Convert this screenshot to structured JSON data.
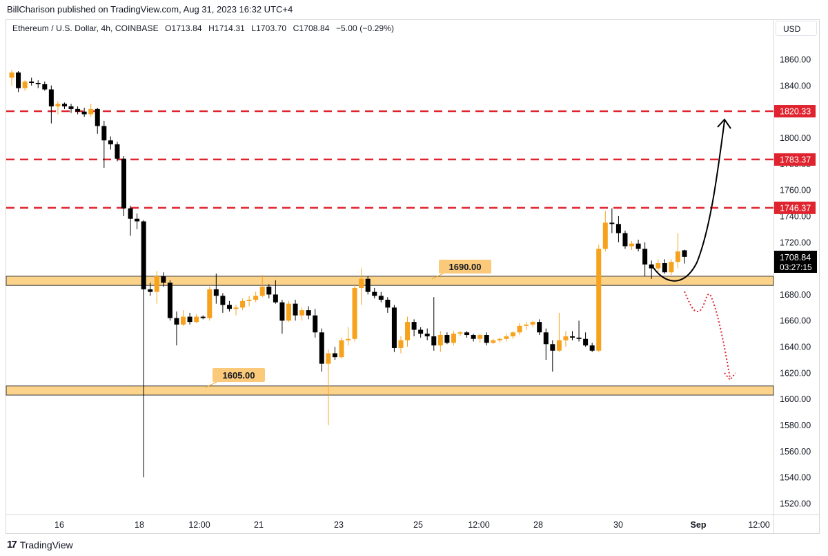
{
  "header": {
    "published": "BillCharison published on TradingView.com, Aug 31, 2023 16:32 UTC+4"
  },
  "legend": {
    "symbol": "Ethereum / U.S. Dollar, 4h, COINBASE",
    "open": "O1713.84",
    "high": "H1714.31",
    "low": "L1703.70",
    "close": "C1708.84",
    "change": "−5.00 (−0.29%)"
  },
  "currency_button": "USD",
  "footer": {
    "brand": "TradingView",
    "logo_icon": "tradingview-logo-icon"
  },
  "colors": {
    "up": "#f7a21c",
    "down": "#000000",
    "resistance": "#e0242f",
    "zone_fill": "#fbd38a",
    "bearish_path": "#e0242f"
  },
  "chart_data": {
    "type": "candlestick",
    "ylim": [
      1510,
      1875
    ],
    "y_ticks": [
      1520,
      1540,
      1560,
      1580,
      1600,
      1620,
      1640,
      1660,
      1680,
      1700,
      1720,
      1740,
      1760,
      1780,
      1800,
      1820,
      1840,
      1860
    ],
    "x_labels": [
      "16",
      "18",
      "12:00",
      "21",
      "23",
      "25",
      "12:00",
      "28",
      "30",
      "Sep",
      "12:00"
    ],
    "grid": false,
    "resistance_levels": [
      {
        "value": 1820.33,
        "label": "1820.33"
      },
      {
        "value": 1783.37,
        "label": "1783.37"
      },
      {
        "value": 1746.37,
        "label": "1746.37"
      }
    ],
    "support_zones": [
      {
        "top": 1694,
        "bottom": 1687,
        "label": "1690.00"
      },
      {
        "top": 1610,
        "bottom": 1603,
        "label": "1605.00"
      }
    ],
    "current_price": {
      "value": 1708.84,
      "label": "1708.84",
      "countdown": "03:27:15"
    },
    "candles": [
      {
        "o": 1846,
        "h": 1852,
        "l": 1840,
        "c": 1850
      },
      {
        "o": 1850,
        "h": 1851,
        "l": 1835,
        "c": 1838
      },
      {
        "o": 1838,
        "h": 1844,
        "l": 1836,
        "c": 1843
      },
      {
        "o": 1843,
        "h": 1846,
        "l": 1840,
        "c": 1842
      },
      {
        "o": 1842,
        "h": 1844,
        "l": 1838,
        "c": 1841
      },
      {
        "o": 1841,
        "h": 1843,
        "l": 1836,
        "c": 1837
      },
      {
        "o": 1837,
        "h": 1840,
        "l": 1811,
        "c": 1824
      },
      {
        "o": 1824,
        "h": 1828,
        "l": 1818,
        "c": 1826
      },
      {
        "o": 1826,
        "h": 1827,
        "l": 1822,
        "c": 1824
      },
      {
        "o": 1824,
        "h": 1826,
        "l": 1819,
        "c": 1822
      },
      {
        "o": 1822,
        "h": 1824,
        "l": 1818,
        "c": 1820
      },
      {
        "o": 1820,
        "h": 1823,
        "l": 1816,
        "c": 1818
      },
      {
        "o": 1818,
        "h": 1826,
        "l": 1816,
        "c": 1822
      },
      {
        "o": 1822,
        "h": 1823,
        "l": 1803,
        "c": 1809
      },
      {
        "o": 1809,
        "h": 1813,
        "l": 1777,
        "c": 1798
      },
      {
        "o": 1798,
        "h": 1801,
        "l": 1791,
        "c": 1795
      },
      {
        "o": 1795,
        "h": 1797,
        "l": 1782,
        "c": 1784
      },
      {
        "o": 1784,
        "h": 1786,
        "l": 1740,
        "c": 1746
      },
      {
        "o": 1746,
        "h": 1748,
        "l": 1725,
        "c": 1738
      },
      {
        "o": 1738,
        "h": 1742,
        "l": 1730,
        "c": 1736
      },
      {
        "o": 1736,
        "h": 1737,
        "l": 1540,
        "c": 1684
      },
      {
        "o": 1684,
        "h": 1689,
        "l": 1679,
        "c": 1682
      },
      {
        "o": 1682,
        "h": 1698,
        "l": 1673,
        "c": 1694
      },
      {
        "o": 1694,
        "h": 1697,
        "l": 1686,
        "c": 1689
      },
      {
        "o": 1689,
        "h": 1691,
        "l": 1660,
        "c": 1662
      },
      {
        "o": 1662,
        "h": 1667,
        "l": 1641,
        "c": 1657
      },
      {
        "o": 1657,
        "h": 1668,
        "l": 1656,
        "c": 1663
      },
      {
        "o": 1663,
        "h": 1666,
        "l": 1657,
        "c": 1659
      },
      {
        "o": 1659,
        "h": 1665,
        "l": 1658,
        "c": 1663
      },
      {
        "o": 1663,
        "h": 1664,
        "l": 1661,
        "c": 1662
      },
      {
        "o": 1662,
        "h": 1686,
        "l": 1660,
        "c": 1684
      },
      {
        "o": 1684,
        "h": 1696,
        "l": 1673,
        "c": 1679
      },
      {
        "o": 1679,
        "h": 1681,
        "l": 1666,
        "c": 1672
      },
      {
        "o": 1672,
        "h": 1675,
        "l": 1667,
        "c": 1669
      },
      {
        "o": 1669,
        "h": 1672,
        "l": 1664,
        "c": 1670
      },
      {
        "o": 1670,
        "h": 1677,
        "l": 1668,
        "c": 1675
      },
      {
        "o": 1675,
        "h": 1679,
        "l": 1671,
        "c": 1676
      },
      {
        "o": 1676,
        "h": 1682,
        "l": 1674,
        "c": 1679
      },
      {
        "o": 1679,
        "h": 1695,
        "l": 1678,
        "c": 1686
      },
      {
        "o": 1686,
        "h": 1688,
        "l": 1677,
        "c": 1680
      },
      {
        "o": 1680,
        "h": 1691,
        "l": 1673,
        "c": 1674
      },
      {
        "o": 1674,
        "h": 1676,
        "l": 1650,
        "c": 1660
      },
      {
        "o": 1660,
        "h": 1675,
        "l": 1659,
        "c": 1673
      },
      {
        "o": 1673,
        "h": 1676,
        "l": 1660,
        "c": 1664
      },
      {
        "o": 1664,
        "h": 1670,
        "l": 1660,
        "c": 1668
      },
      {
        "o": 1668,
        "h": 1671,
        "l": 1661,
        "c": 1664
      },
      {
        "o": 1664,
        "h": 1669,
        "l": 1647,
        "c": 1651
      },
      {
        "o": 1651,
        "h": 1654,
        "l": 1621,
        "c": 1627
      },
      {
        "o": 1627,
        "h": 1638,
        "l": 1580,
        "c": 1635
      },
      {
        "o": 1635,
        "h": 1640,
        "l": 1630,
        "c": 1632
      },
      {
        "o": 1632,
        "h": 1647,
        "l": 1631,
        "c": 1645
      },
      {
        "o": 1645,
        "h": 1655,
        "l": 1641,
        "c": 1646
      },
      {
        "o": 1646,
        "h": 1688,
        "l": 1644,
        "c": 1685
      },
      {
        "o": 1685,
        "h": 1700,
        "l": 1672,
        "c": 1692
      },
      {
        "o": 1692,
        "h": 1694,
        "l": 1680,
        "c": 1682
      },
      {
        "o": 1682,
        "h": 1685,
        "l": 1677,
        "c": 1679
      },
      {
        "o": 1679,
        "h": 1682,
        "l": 1674,
        "c": 1676
      },
      {
        "o": 1676,
        "h": 1678,
        "l": 1666,
        "c": 1670
      },
      {
        "o": 1670,
        "h": 1672,
        "l": 1636,
        "c": 1639
      },
      {
        "o": 1639,
        "h": 1648,
        "l": 1635,
        "c": 1645
      },
      {
        "o": 1645,
        "h": 1663,
        "l": 1640,
        "c": 1659
      },
      {
        "o": 1659,
        "h": 1661,
        "l": 1648,
        "c": 1653
      },
      {
        "o": 1653,
        "h": 1655,
        "l": 1647,
        "c": 1650
      },
      {
        "o": 1650,
        "h": 1654,
        "l": 1645,
        "c": 1648
      },
      {
        "o": 1648,
        "h": 1678,
        "l": 1637,
        "c": 1641
      },
      {
        "o": 1641,
        "h": 1652,
        "l": 1636,
        "c": 1649
      },
      {
        "o": 1649,
        "h": 1651,
        "l": 1642,
        "c": 1643
      },
      {
        "o": 1643,
        "h": 1652,
        "l": 1641,
        "c": 1650
      },
      {
        "o": 1650,
        "h": 1652,
        "l": 1648,
        "c": 1651
      },
      {
        "o": 1651,
        "h": 1652,
        "l": 1647,
        "c": 1649
      },
      {
        "o": 1649,
        "h": 1650,
        "l": 1644,
        "c": 1646
      },
      {
        "o": 1646,
        "h": 1650,
        "l": 1643,
        "c": 1649
      },
      {
        "o": 1649,
        "h": 1651,
        "l": 1641,
        "c": 1643
      },
      {
        "o": 1643,
        "h": 1646,
        "l": 1642,
        "c": 1645
      },
      {
        "o": 1645,
        "h": 1647,
        "l": 1643,
        "c": 1646
      },
      {
        "o": 1646,
        "h": 1650,
        "l": 1644,
        "c": 1648
      },
      {
        "o": 1648,
        "h": 1652,
        "l": 1646,
        "c": 1651
      },
      {
        "o": 1651,
        "h": 1658,
        "l": 1649,
        "c": 1656
      },
      {
        "o": 1656,
        "h": 1659,
        "l": 1653,
        "c": 1657
      },
      {
        "o": 1657,
        "h": 1660,
        "l": 1655,
        "c": 1659
      },
      {
        "o": 1659,
        "h": 1661,
        "l": 1649,
        "c": 1651
      },
      {
        "o": 1651,
        "h": 1654,
        "l": 1630,
        "c": 1642
      },
      {
        "o": 1642,
        "h": 1645,
        "l": 1621,
        "c": 1637
      },
      {
        "o": 1637,
        "h": 1666,
        "l": 1636,
        "c": 1645
      },
      {
        "o": 1645,
        "h": 1652,
        "l": 1640,
        "c": 1648
      },
      {
        "o": 1648,
        "h": 1652,
        "l": 1645,
        "c": 1647
      },
      {
        "o": 1647,
        "h": 1660,
        "l": 1644,
        "c": 1646
      },
      {
        "o": 1646,
        "h": 1651,
        "l": 1640,
        "c": 1641
      },
      {
        "o": 1641,
        "h": 1643,
        "l": 1636,
        "c": 1637
      },
      {
        "o": 1637,
        "h": 1718,
        "l": 1636,
        "c": 1715
      },
      {
        "o": 1715,
        "h": 1744,
        "l": 1713,
        "c": 1735
      },
      {
        "o": 1735,
        "h": 1746,
        "l": 1727,
        "c": 1734
      },
      {
        "o": 1734,
        "h": 1740,
        "l": 1720,
        "c": 1727
      },
      {
        "o": 1727,
        "h": 1729,
        "l": 1715,
        "c": 1717
      },
      {
        "o": 1717,
        "h": 1721,
        "l": 1714,
        "c": 1719
      },
      {
        "o": 1719,
        "h": 1722,
        "l": 1713,
        "c": 1715
      },
      {
        "o": 1715,
        "h": 1720,
        "l": 1694,
        "c": 1703
      },
      {
        "o": 1703,
        "h": 1706,
        "l": 1692,
        "c": 1700
      },
      {
        "o": 1700,
        "h": 1707,
        "l": 1696,
        "c": 1704
      },
      {
        "o": 1704,
        "h": 1707,
        "l": 1696,
        "c": 1697
      },
      {
        "o": 1697,
        "h": 1707,
        "l": 1695,
        "c": 1705
      },
      {
        "o": 1705,
        "h": 1727,
        "l": 1700,
        "c": 1713
      },
      {
        "o": 1713.84,
        "h": 1714.31,
        "l": 1703.7,
        "c": 1708.84
      }
    ]
  }
}
